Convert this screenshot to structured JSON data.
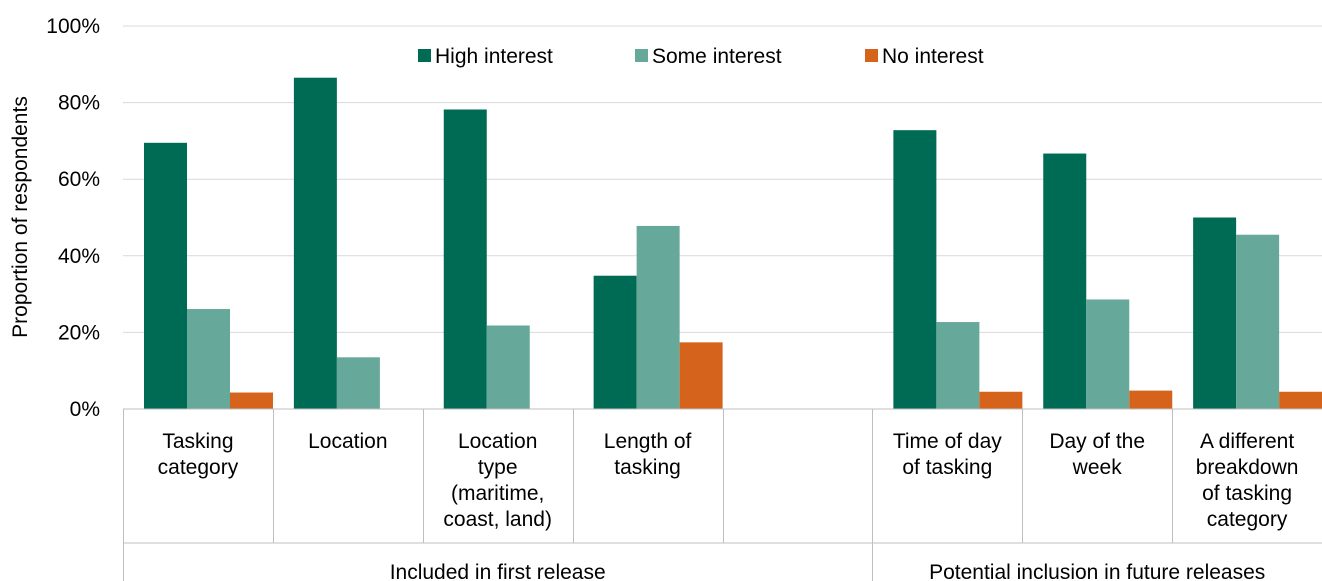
{
  "chart_data": {
    "type": "bar",
    "ylabel": "Proportion of respondents",
    "ylim": [
      0,
      100
    ],
    "yticks": [
      "0%",
      "20%",
      "40%",
      "60%",
      "80%",
      "100%"
    ],
    "grid": true,
    "legend_position": "top-center",
    "categories": [
      [
        "Tasking",
        "category"
      ],
      [
        "Location"
      ],
      [
        "Location",
        "type",
        "(maritime,",
        "coast, land)"
      ],
      [
        "Length of",
        "tasking"
      ],
      [],
      [
        "Time of day",
        "of tasking"
      ],
      [
        "Day of the",
        "week"
      ],
      [
        "A different",
        "breakdown",
        "of tasking",
        "category"
      ]
    ],
    "groups": [
      {
        "label": "Included in first release",
        "start": 0,
        "end": 4
      },
      {
        "label": "Potential inclusion in future releases",
        "start": 5,
        "end": 7
      }
    ],
    "series": [
      {
        "name": "High interest",
        "color": "#006B54",
        "values": [
          69.5,
          86.5,
          78.2,
          34.8,
          null,
          72.8,
          66.7,
          50.0
        ]
      },
      {
        "name": "Some interest",
        "color": "#66A899",
        "values": [
          26.1,
          13.5,
          21.8,
          47.8,
          null,
          22.7,
          28.6,
          45.5
        ]
      },
      {
        "name": "No interest",
        "color": "#D5631C",
        "values": [
          4.3,
          0,
          0,
          17.4,
          null,
          4.5,
          4.8,
          4.5
        ]
      }
    ]
  }
}
